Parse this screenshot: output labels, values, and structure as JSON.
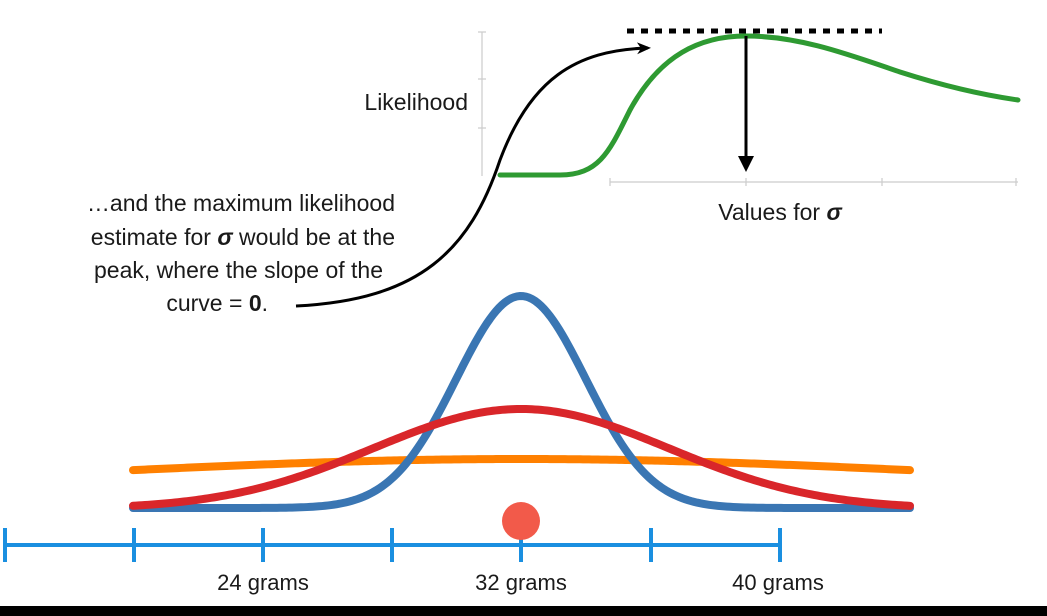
{
  "likelihood_plot": {
    "y_label": "Likelihood",
    "x_label_prefix": "Values for ",
    "x_label_symbol": "σ",
    "curve_color": "#2e9a32",
    "axis_color": "#cccccc",
    "peak_marker": "dotted-horizontal-tangent",
    "peak_arrow": "down-arrow-to-axis"
  },
  "annotation": {
    "line1": "…and the maximum likelihood",
    "line2_pre": "estimate for ",
    "line2_symbol": "σ",
    "line2_post": " would be at the",
    "line3": "peak, where the slope of the",
    "line4_pre": "curve = ",
    "line4_value": "0",
    "line4_post": "."
  },
  "distributions": {
    "colors": {
      "narrow": "#3a76b3",
      "medium": "#d9262a",
      "wide": "#ff8000"
    },
    "data_point_color": "#f25a4a"
  },
  "number_line": {
    "color": "#1a8fe0",
    "labels": [
      "24 grams",
      "32 grams",
      "40 grams"
    ]
  }
}
